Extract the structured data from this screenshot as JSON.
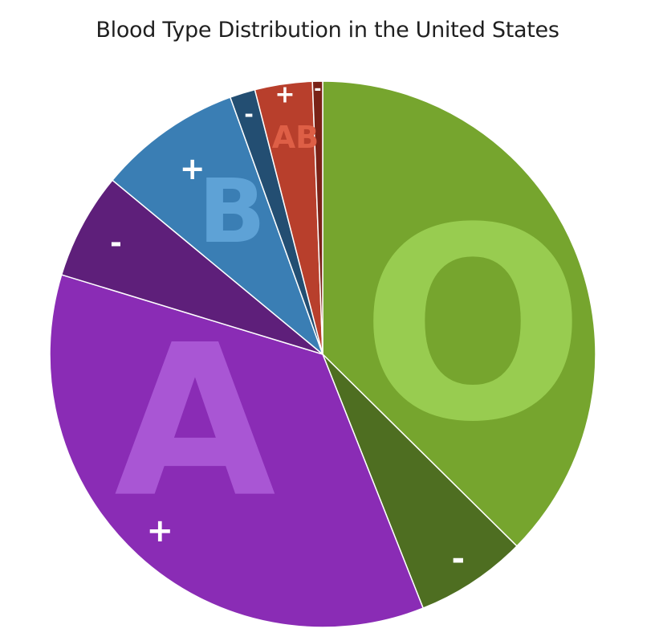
{
  "chart_data": {
    "type": "pie",
    "title": "Blood Type Distribution in the United States",
    "start": "12 o'clock",
    "direction": "clockwise",
    "legend": "none",
    "slices": [
      {
        "group": "O",
        "sign": "+",
        "value": 37.4,
        "color": "#76a52e"
      },
      {
        "group": "O",
        "sign": "-",
        "value": 6.6,
        "color": "#4e6e21"
      },
      {
        "group": "A",
        "sign": "+",
        "value": 35.7,
        "color": "#8a2cb5"
      },
      {
        "group": "A",
        "sign": "-",
        "value": 6.3,
        "color": "#5e1f7a"
      },
      {
        "group": "B",
        "sign": "+",
        "value": 8.5,
        "color": "#3a7eb4"
      },
      {
        "group": "B",
        "sign": "-",
        "value": 1.5,
        "color": "#234e72"
      },
      {
        "group": "AB",
        "sign": "+",
        "value": 3.4,
        "color": "#b83f2c"
      },
      {
        "group": "AB",
        "sign": "-",
        "value": 0.6,
        "color": "#7a2217"
      }
    ],
    "group_labels": [
      {
        "text": "O",
        "color": "#98cc50"
      },
      {
        "text": "A",
        "color": "#a956d4"
      },
      {
        "text": "B",
        "color": "#5ea2d6"
      },
      {
        "text": "AB",
        "color": "#de5f46"
      }
    ]
  }
}
